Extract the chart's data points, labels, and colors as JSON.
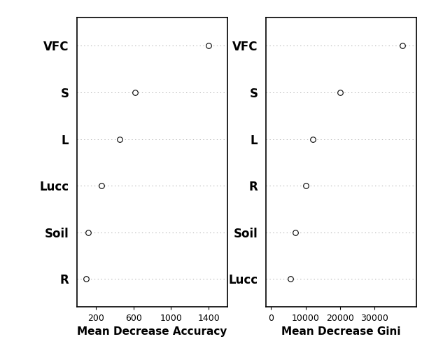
{
  "left_labels": [
    "VFC",
    "S",
    "L",
    "Lucc",
    "Soil",
    "R"
  ],
  "left_values": [
    1400,
    620,
    450,
    255,
    120,
    95
  ],
  "left_xlabel": "Mean Decrease Accuracy",
  "left_xlim": [
    0,
    1600
  ],
  "left_xticks": [
    200,
    600,
    1000,
    1400
  ],
  "right_labels": [
    "VFC",
    "S",
    "L",
    "R",
    "Soil",
    "Lucc"
  ],
  "right_values": [
    38000,
    20000,
    12000,
    10000,
    7000,
    5500
  ],
  "right_xlabel": "Mean Decrease Gini",
  "right_xlim": [
    -1500,
    42000
  ],
  "right_xticks": [
    0,
    10000,
    20000,
    30000
  ],
  "dot_color": "white",
  "dot_edgecolor": "black",
  "dot_size": 30,
  "dot_linewidth": 0.8,
  "grid_color": "#888888",
  "bg_color": "white",
  "font_color": "black",
  "label_fontsize": 12,
  "xlabel_fontsize": 11,
  "tick_fontsize": 9
}
